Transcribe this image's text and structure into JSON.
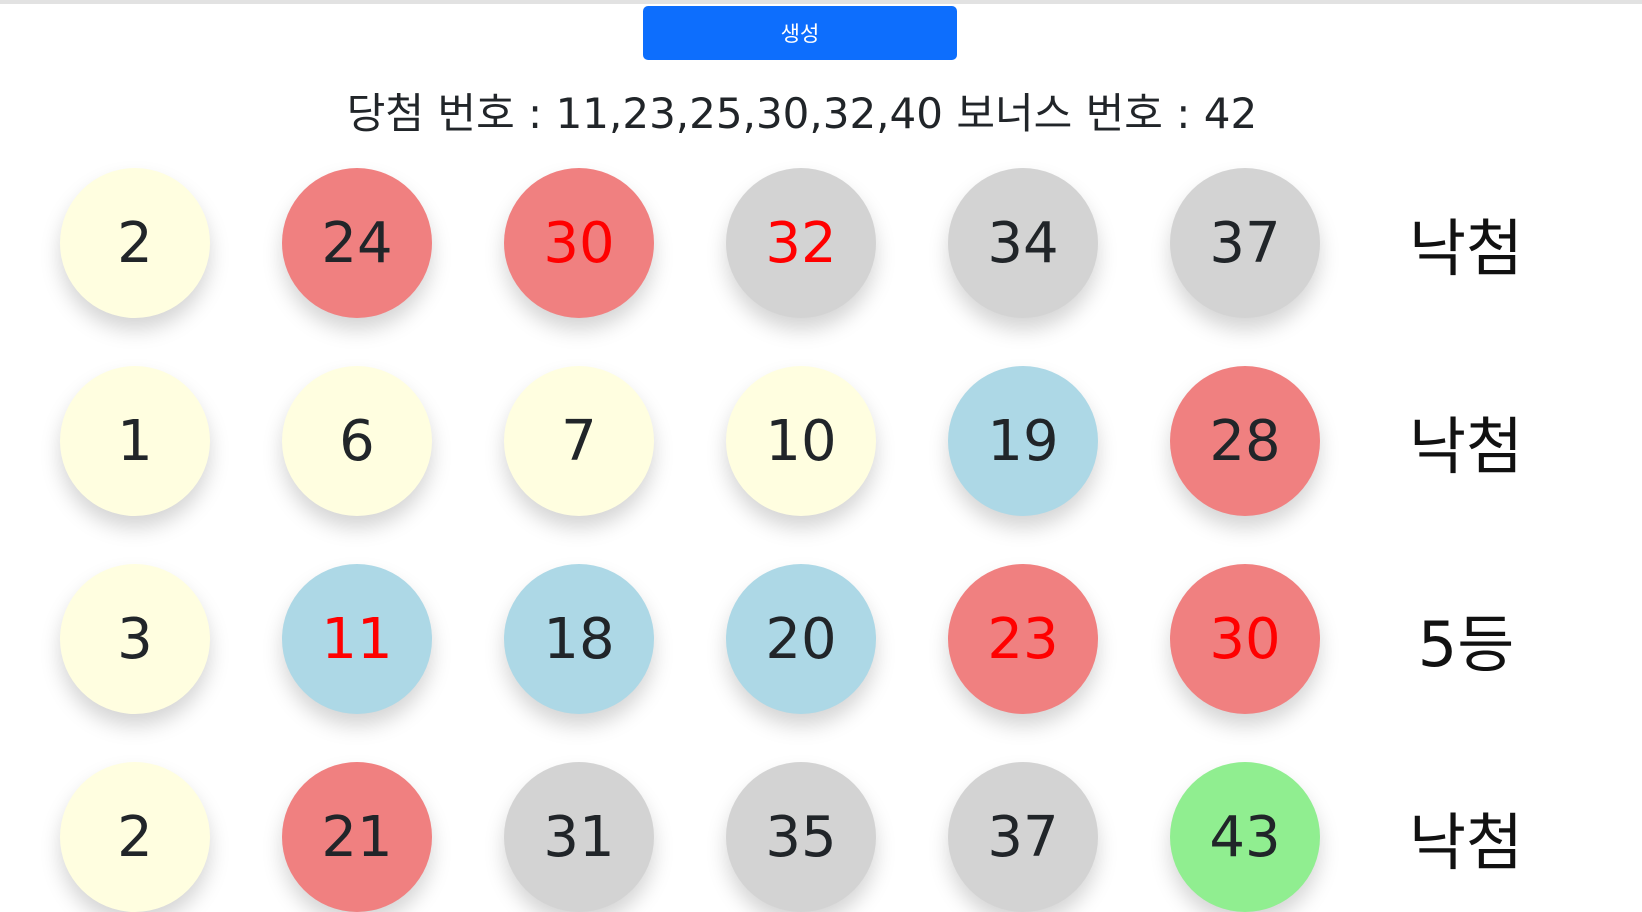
{
  "generate_button": {
    "label": "생성",
    "color": "#0d6efd"
  },
  "winning": {
    "label": "당첨 번호 : ",
    "numbers": "11,23,25,30,32,40",
    "bonus_label": " 보너스 번호 : ",
    "bonus": "42"
  },
  "colors": {
    "yellow": "#fffee0",
    "blue": "#add8e6",
    "red": "#f08080",
    "gray": "#d3d3d3",
    "green": "#90ee90",
    "text_default": "#212529",
    "text_match": "#ff0000"
  },
  "rows": [
    {
      "balls": [
        {
          "number": "2",
          "color": "yellow",
          "matched": false
        },
        {
          "number": "24",
          "color": "red",
          "matched": false
        },
        {
          "number": "30",
          "color": "red",
          "matched": true
        },
        {
          "number": "32",
          "color": "gray",
          "matched": true
        },
        {
          "number": "34",
          "color": "gray",
          "matched": false
        },
        {
          "number": "37",
          "color": "gray",
          "matched": false
        }
      ],
      "result": "낙첨"
    },
    {
      "balls": [
        {
          "number": "1",
          "color": "yellow",
          "matched": false
        },
        {
          "number": "6",
          "color": "yellow",
          "matched": false
        },
        {
          "number": "7",
          "color": "yellow",
          "matched": false
        },
        {
          "number": "10",
          "color": "yellow",
          "matched": false
        },
        {
          "number": "19",
          "color": "blue",
          "matched": false
        },
        {
          "number": "28",
          "color": "red",
          "matched": false
        }
      ],
      "result": "낙첨"
    },
    {
      "balls": [
        {
          "number": "3",
          "color": "yellow",
          "matched": false
        },
        {
          "number": "11",
          "color": "blue",
          "matched": true
        },
        {
          "number": "18",
          "color": "blue",
          "matched": false
        },
        {
          "number": "20",
          "color": "blue",
          "matched": false
        },
        {
          "number": "23",
          "color": "red",
          "matched": true
        },
        {
          "number": "30",
          "color": "red",
          "matched": true
        }
      ],
      "result": "5등"
    },
    {
      "balls": [
        {
          "number": "2",
          "color": "yellow",
          "matched": false
        },
        {
          "number": "21",
          "color": "red",
          "matched": false
        },
        {
          "number": "31",
          "color": "gray",
          "matched": false
        },
        {
          "number": "35",
          "color": "gray",
          "matched": false
        },
        {
          "number": "37",
          "color": "gray",
          "matched": false
        },
        {
          "number": "43",
          "color": "green",
          "matched": false
        }
      ],
      "result": "낙첨"
    }
  ]
}
